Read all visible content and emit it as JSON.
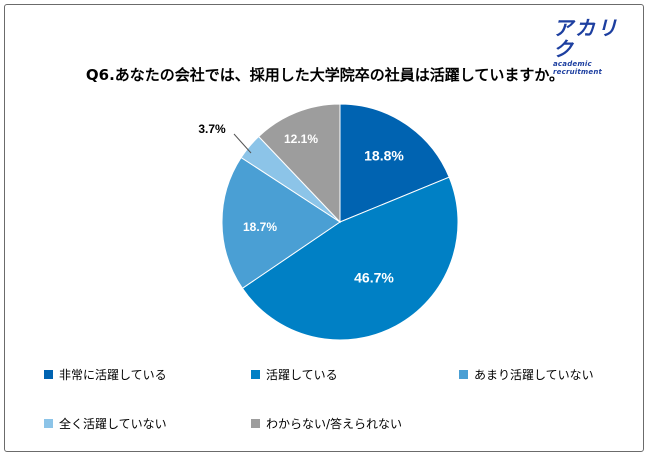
{
  "logo": {
    "main": "アカリク",
    "sub": "academic recruitment"
  },
  "title": "Q6.あなたの会社では、採用した大学院卒の社員は活躍していますか。",
  "colors": {
    "frame": "#6b6b6b",
    "logo": "#1d3fa0"
  },
  "chart_data": {
    "type": "pie",
    "title": "Q6.あなたの会社では、採用した大学院卒の社員は活躍していますか。",
    "start": "12 o'clock, clockwise",
    "legend_position": "bottom",
    "unit": "%",
    "slices": [
      {
        "label": "非常に活躍している",
        "value": 18.8,
        "display": "18.8%",
        "color": "#0063b1"
      },
      {
        "label": "活躍している",
        "value": 46.7,
        "display": "46.7%",
        "color": "#0080c5"
      },
      {
        "label": "あまり活躍していない",
        "value": 18.7,
        "display": "18.7%",
        "color": "#4a9fd4"
      },
      {
        "label": "全く活躍していない",
        "value": 3.7,
        "display": "3.7%",
        "color": "#8cc4e8"
      },
      {
        "label": "わからない/答えられない",
        "value": 12.1,
        "display": "12.1%",
        "color": "#9d9d9d"
      }
    ]
  }
}
